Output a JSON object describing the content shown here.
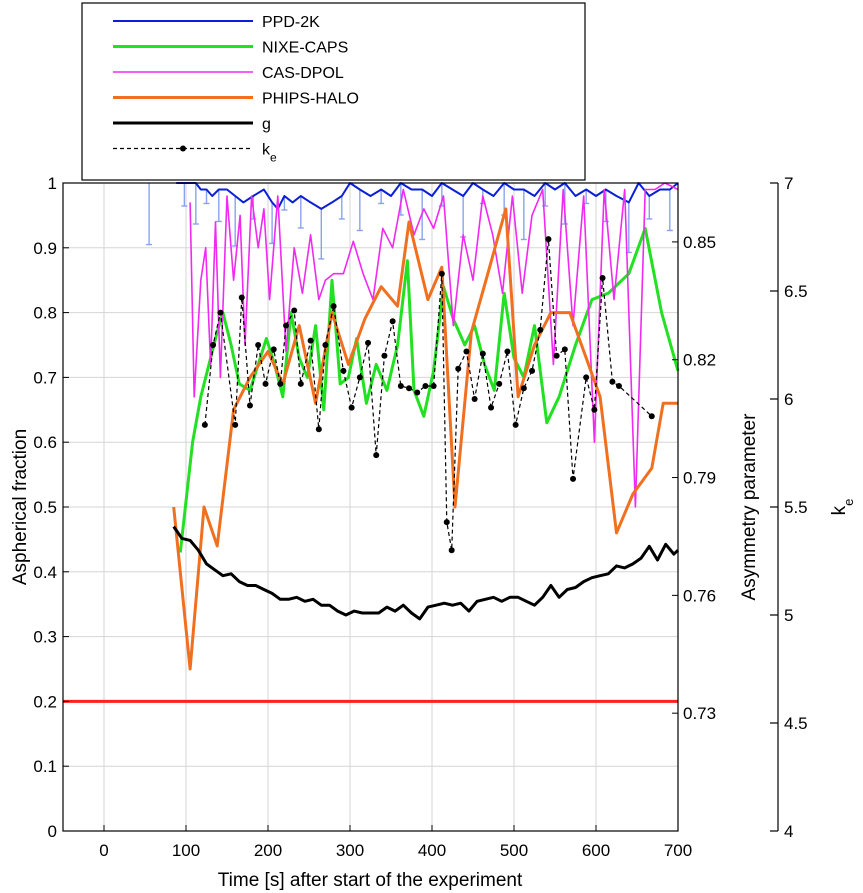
{
  "chart_data": {
    "type": "line",
    "xlabel": "Time [s] after start of the experiment",
    "x_ticks": [
      0,
      100,
      200,
      300,
      400,
      500,
      600,
      700
    ],
    "xlim": [
      -50,
      700
    ],
    "y_left": {
      "label": "Aspherical fraction",
      "lim": [
        0,
        1
      ],
      "ticks": [
        "0",
        "0.1",
        "0.2",
        "0.3",
        "0.4",
        "0.5",
        "0.6",
        "0.7",
        "0.8",
        "0.9",
        "1"
      ]
    },
    "y_inner_right": {
      "label": "Asymmetry parameter",
      "lim": [
        0.7,
        0.865
      ],
      "ticks": [
        "0.73",
        "0.76",
        "0.79",
        "0.82",
        "0.85"
      ]
    },
    "y_outer_right": {
      "label": "k",
      "label_sub": "e",
      "lim": [
        4,
        7
      ],
      "ticks": [
        "4",
        "4.5",
        "5",
        "5.5",
        "6",
        "6.5",
        "7"
      ]
    },
    "grid": true,
    "legend_position": "top",
    "reference_line": {
      "y": 0.2,
      "color": "#ff2020"
    },
    "series": [
      {
        "name": "PPD-2K",
        "color": "#0a1fd6",
        "axis": "left",
        "style": "solid",
        "width": 2,
        "x": [
          88,
          98,
          105,
          112,
          118,
          125,
          132,
          140,
          150,
          160,
          170,
          182,
          195,
          205,
          212,
          220,
          230,
          240,
          252,
          265,
          278,
          290,
          300,
          312,
          325,
          338,
          350,
          362,
          375,
          388,
          400,
          412,
          425,
          438,
          450,
          462,
          475,
          488,
          500,
          512,
          525,
          538,
          550,
          562,
          575,
          588,
          600,
          612,
          625,
          640,
          652,
          665,
          678,
          690,
          700
        ],
        "y": [
          1.0,
          1.0,
          1.0,
          1.0,
          0.99,
          0.99,
          0.98,
          0.99,
          0.99,
          0.98,
          0.97,
          0.98,
          0.99,
          0.97,
          0.96,
          0.98,
          0.97,
          0.98,
          0.97,
          0.96,
          0.97,
          0.98,
          1.0,
          0.99,
          0.98,
          0.99,
          0.98,
          1.0,
          0.99,
          0.99,
          0.98,
          1.0,
          0.99,
          0.98,
          1.0,
          0.99,
          0.98,
          1.0,
          0.99,
          0.99,
          0.98,
          1.0,
          0.99,
          1.0,
          0.98,
          0.99,
          0.98,
          0.99,
          0.98,
          0.97,
          1.0,
          0.98,
          0.99,
          0.99,
          1.0
        ]
      },
      {
        "name": "NIXE-CAPS",
        "color": "#22e022",
        "axis": "left",
        "style": "solid",
        "width": 3,
        "x": [
          93,
          108,
          118,
          128,
          138,
          145,
          155,
          165,
          178,
          188,
          198,
          208,
          218,
          228,
          238,
          248,
          258,
          268,
          278,
          288,
          298,
          308,
          320,
          332,
          345,
          358,
          370,
          378,
          390,
          402,
          414,
          426,
          440,
          452,
          464,
          476,
          488,
          500,
          512,
          525,
          540,
          555,
          575,
          595,
          615,
          640,
          660,
          680,
          700
        ],
        "y": [
          0.43,
          0.6,
          0.67,
          0.72,
          0.77,
          0.8,
          0.75,
          0.69,
          0.68,
          0.72,
          0.76,
          0.72,
          0.67,
          0.8,
          0.73,
          0.7,
          0.78,
          0.65,
          0.85,
          0.69,
          0.7,
          0.76,
          0.66,
          0.72,
          0.68,
          0.75,
          0.88,
          0.68,
          0.64,
          0.71,
          0.84,
          0.79,
          0.75,
          0.78,
          0.72,
          0.68,
          0.83,
          0.73,
          0.7,
          0.78,
          0.63,
          0.67,
          0.75,
          0.82,
          0.83,
          0.86,
          0.93,
          0.8,
          0.71
        ]
      },
      {
        "name": "CAS-DPOL",
        "color": "#f02af0",
        "axis": "left",
        "style": "solid",
        "width": 1.6,
        "x": [
          105,
          110,
          118,
          124,
          130,
          136,
          142,
          150,
          158,
          166,
          172,
          180,
          188,
          195,
          202,
          212,
          222,
          232,
          242,
          252,
          262,
          270,
          280,
          292,
          304,
          316,
          328,
          340,
          352,
          365,
          378,
          390,
          402,
          414,
          426,
          438,
          450,
          462,
          474,
          486,
          498,
          510,
          522,
          535,
          548,
          560,
          572,
          585,
          598,
          610,
          622,
          635,
          648,
          660,
          672,
          684,
          700
        ],
        "y": [
          0.97,
          0.67,
          0.85,
          0.9,
          0.72,
          0.94,
          0.7,
          0.98,
          0.85,
          0.95,
          0.75,
          0.98,
          0.9,
          0.96,
          0.82,
          0.98,
          0.74,
          0.9,
          0.83,
          0.92,
          0.82,
          0.85,
          0.86,
          0.86,
          0.91,
          0.86,
          0.82,
          0.93,
          0.9,
          0.99,
          0.92,
          0.96,
          0.93,
          0.98,
          0.78,
          0.92,
          0.85,
          0.98,
          0.92,
          0.83,
          0.98,
          0.83,
          0.95,
          0.99,
          0.72,
          0.99,
          0.78,
          0.98,
          0.6,
          0.99,
          0.82,
          0.99,
          0.5,
          0.99,
          0.99,
          1.0,
          0.99
        ]
      },
      {
        "name": "PHIPS-HALO",
        "color": "#f07020",
        "axis": "left",
        "style": "solid",
        "width": 3,
        "x": [
          85,
          105,
          122,
          138,
          158,
          178,
          200,
          218,
          238,
          258,
          278,
          298,
          318,
          338,
          358,
          372,
          395,
          412,
          428,
          448,
          468,
          490,
          505,
          525,
          545,
          568,
          588,
          605,
          625,
          645,
          668,
          682,
          700
        ],
        "y": [
          0.5,
          0.25,
          0.5,
          0.44,
          0.65,
          0.7,
          0.74,
          0.69,
          0.78,
          0.66,
          0.8,
          0.72,
          0.79,
          0.84,
          0.81,
          0.94,
          0.82,
          0.87,
          0.5,
          0.77,
          0.86,
          0.96,
          0.67,
          0.75,
          0.8,
          0.8,
          0.73,
          0.67,
          0.46,
          0.52,
          0.56,
          0.66,
          0.66
        ]
      },
      {
        "name": "g",
        "color": "#000000",
        "axis": "inner_right",
        "style": "solid",
        "width": 3,
        "x": [
          85,
          95,
          105,
          115,
          125,
          135,
          145,
          155,
          165,
          175,
          185,
          195,
          205,
          215,
          225,
          235,
          245,
          255,
          265,
          275,
          285,
          295,
          305,
          315,
          325,
          335,
          345,
          355,
          365,
          375,
          385,
          395,
          405,
          415,
          425,
          435,
          445,
          455,
          465,
          475,
          485,
          495,
          505,
          515,
          525,
          535,
          545,
          555,
          565,
          575,
          585,
          595,
          605,
          615,
          625,
          635,
          645,
          655,
          665,
          675,
          685,
          695,
          700
        ],
        "y": [
          0.7775,
          0.7745,
          0.774,
          0.7715,
          0.768,
          0.7665,
          0.765,
          0.7655,
          0.7635,
          0.7625,
          0.7625,
          0.7615,
          0.7605,
          0.759,
          0.759,
          0.7595,
          0.7585,
          0.759,
          0.7575,
          0.7575,
          0.756,
          0.755,
          0.756,
          0.7555,
          0.7555,
          0.7555,
          0.757,
          0.756,
          0.7575,
          0.7555,
          0.754,
          0.757,
          0.7575,
          0.758,
          0.7575,
          0.758,
          0.756,
          0.7585,
          0.759,
          0.7595,
          0.7585,
          0.7595,
          0.7595,
          0.7585,
          0.7575,
          0.7595,
          0.7625,
          0.7595,
          0.7615,
          0.762,
          0.7635,
          0.7645,
          0.765,
          0.7655,
          0.7675,
          0.767,
          0.768,
          0.7695,
          0.7725,
          0.769,
          0.773,
          0.7705,
          0.7715
        ]
      },
      {
        "name": "k",
        "name_sub": "e",
        "color": "#000000",
        "axis": "outer_right",
        "style": "dashed-dots",
        "width": 1.2,
        "x": [
          123,
          133,
          142,
          160,
          168,
          178,
          188,
          197,
          207,
          215,
          222,
          232,
          240,
          252,
          262,
          270,
          280,
          292,
          302,
          312,
          322,
          332,
          342,
          352,
          362,
          372,
          382,
          392,
          402,
          412,
          418,
          424,
          432,
          442,
          452,
          462,
          472,
          482,
          492,
          502,
          512,
          522,
          532,
          542,
          552,
          562,
          572,
          588,
          598,
          608,
          620,
          628,
          668
        ],
        "y": [
          5.88,
          6.25,
          6.4,
          5.88,
          6.47,
          5.97,
          6.25,
          6.07,
          6.23,
          6.07,
          6.34,
          6.41,
          6.07,
          6.27,
          5.86,
          6.25,
          6.43,
          6.13,
          5.96,
          6.1,
          6.26,
          5.74,
          6.2,
          6.36,
          6.06,
          6.05,
          6.03,
          6.06,
          6.06,
          6.58,
          5.43,
          5.3,
          6.14,
          6.22,
          6.0,
          6.21,
          5.96,
          6.07,
          6.22,
          5.88,
          6.05,
          6.13,
          6.32,
          6.74,
          6.2,
          6.23,
          5.63,
          6.1,
          5.95,
          6.56,
          6.08,
          6.06,
          5.92
        ]
      }
    ]
  }
}
